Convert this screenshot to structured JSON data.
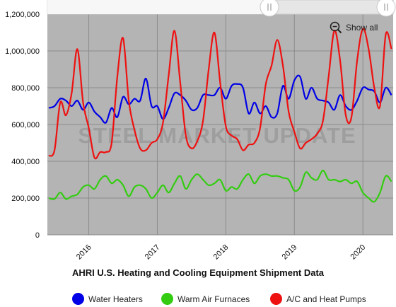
{
  "colors": {
    "plot_background": "#b4b4b4",
    "gridline": "#8c8c8c",
    "water_heaters": "#0000e6",
    "warm_air_furnaces": "#33cc11",
    "ac_heat_pumps": "#ee1111"
  },
  "watermark": "STEEL MARKET UPDATE",
  "show_all_label": "Show all",
  "chart_data": {
    "type": "line",
    "title": "AHRI U.S. Heating and Cooling Equipment Shipment Data",
    "xlabel": "",
    "ylabel": "",
    "ylim": [
      0,
      1200000
    ],
    "yticks": [
      0,
      200000,
      400000,
      600000,
      800000,
      1000000,
      1200000
    ],
    "ytick_labels": [
      "0",
      "200,000",
      "400,000",
      "600,000",
      "800,000",
      "1,000,000",
      "1,200,000"
    ],
    "xticks": [
      "2016",
      "2017",
      "2018",
      "2019",
      "2020"
    ],
    "grid": true,
    "legend_position": "bottom",
    "x": [
      "2015-06",
      "2015-07",
      "2015-08",
      "2015-09",
      "2015-10",
      "2015-11",
      "2015-12",
      "2016-01",
      "2016-02",
      "2016-03",
      "2016-04",
      "2016-05",
      "2016-06",
      "2016-07",
      "2016-08",
      "2016-09",
      "2016-10",
      "2016-11",
      "2016-12",
      "2017-01",
      "2017-02",
      "2017-03",
      "2017-04",
      "2017-05",
      "2017-06",
      "2017-07",
      "2017-08",
      "2017-09",
      "2017-10",
      "2017-11",
      "2017-12",
      "2018-01",
      "2018-02",
      "2018-03",
      "2018-04",
      "2018-05",
      "2018-06",
      "2018-07",
      "2018-08",
      "2018-09",
      "2018-10",
      "2018-11",
      "2018-12",
      "2019-01",
      "2019-02",
      "2019-03",
      "2019-04",
      "2019-05",
      "2019-06",
      "2019-07",
      "2019-08",
      "2019-09",
      "2019-10",
      "2019-11",
      "2019-12",
      "2020-01",
      "2020-02",
      "2020-03",
      "2020-04",
      "2020-05",
      "2020-06"
    ],
    "series": [
      {
        "name": "Water Heaters",
        "color": "#0000e6",
        "values": [
          690000,
          700000,
          740000,
          730000,
          700000,
          730000,
          680000,
          720000,
          670000,
          640000,
          610000,
          690000,
          640000,
          750000,
          710000,
          740000,
          730000,
          850000,
          700000,
          700000,
          630000,
          690000,
          770000,
          760000,
          730000,
          680000,
          690000,
          760000,
          760000,
          760000,
          800000,
          740000,
          810000,
          820000,
          800000,
          660000,
          720000,
          660000,
          700000,
          640000,
          660000,
          810000,
          740000,
          840000,
          860000,
          740000,
          800000,
          740000,
          730000,
          720000,
          680000,
          760000,
          700000,
          680000,
          730000,
          800000,
          790000,
          780000,
          720000,
          800000,
          760000
        ]
      },
      {
        "name": "Warm Air Furnaces",
        "color": "#33cc11",
        "values": [
          200000,
          195000,
          230000,
          195000,
          210000,
          220000,
          260000,
          270000,
          250000,
          300000,
          320000,
          280000,
          300000,
          270000,
          210000,
          260000,
          270000,
          250000,
          200000,
          230000,
          270000,
          230000,
          280000,
          320000,
          250000,
          300000,
          330000,
          300000,
          270000,
          280000,
          300000,
          240000,
          260000,
          250000,
          300000,
          330000,
          280000,
          320000,
          330000,
          320000,
          320000,
          310000,
          300000,
          240000,
          260000,
          340000,
          310000,
          300000,
          350000,
          300000,
          300000,
          290000,
          300000,
          280000,
          290000,
          230000,
          200000,
          180000,
          230000,
          320000,
          290000
        ]
      },
      {
        "name": "A/C and Heat Pumps",
        "color": "#ee1111",
        "values": [
          430000,
          460000,
          720000,
          650000,
          770000,
          1010000,
          720000,
          580000,
          420000,
          450000,
          450000,
          500000,
          860000,
          1070000,
          730000,
          570000,
          470000,
          460000,
          500000,
          520000,
          610000,
          870000,
          1110000,
          830000,
          540000,
          470000,
          510000,
          620000,
          900000,
          1100000,
          830000,
          590000,
          540000,
          520000,
          460000,
          490000,
          500000,
          580000,
          820000,
          920000,
          1060000,
          920000,
          670000,
          560000,
          470000,
          500000,
          520000,
          550000,
          620000,
          860000,
          1110000,
          950000,
          650000,
          640000,
          950000,
          1120000,
          1010000,
          800000,
          700000,
          1090000,
          1010000
        ]
      }
    ]
  }
}
